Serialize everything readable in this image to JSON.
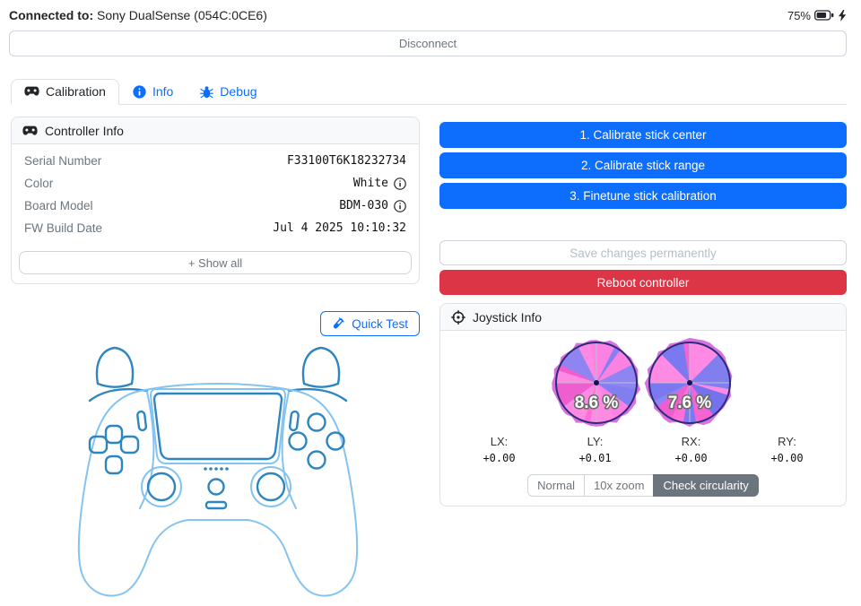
{
  "header": {
    "connected_label": "Connected to:",
    "device_name": "Sony DualSense (054C:0CE6)",
    "battery_percent": "75%",
    "battery_charging": true,
    "disconnect_label": "Disconnect"
  },
  "tabs": [
    {
      "label": "Calibration",
      "icon": "gamepad-icon",
      "active": true
    },
    {
      "label": "Info",
      "icon": "info-icon",
      "active": false
    },
    {
      "label": "Debug",
      "icon": "bug-icon",
      "active": false
    }
  ],
  "controller_info": {
    "title": "Controller Info",
    "rows": [
      {
        "label": "Serial Number",
        "value": "F33100T6K18232734"
      },
      {
        "label": "Color",
        "value": "White"
      },
      {
        "label": "Board Model",
        "value": "BDM-030"
      },
      {
        "label": "FW Build Date",
        "value": "Jul 4 2025 10:10:32"
      }
    ],
    "show_all_plus": "+",
    "show_all_label": "Show all"
  },
  "calibration_actions": [
    "1. Calibrate stick center",
    "2. Calibrate stick range",
    "3. Finetune stick calibration"
  ],
  "save_button_label": "Save changes permanently",
  "reboot_button_label": "Reboot controller",
  "quick_test_label": "Quick Test",
  "joystick_info": {
    "title": "Joystick Info",
    "left_circularity": "8.6 %",
    "right_circularity": "7.6 %",
    "axes": [
      {
        "label": "LX:",
        "value": "+0.00"
      },
      {
        "label": "LY:",
        "value": "+0.01"
      },
      {
        "label": "RX:",
        "value": "+0.00"
      },
      {
        "label": "RY:",
        "value": "+0.00"
      }
    ],
    "modes": [
      {
        "label": "Normal",
        "active": false
      },
      {
        "label": "10x zoom",
        "active": false
      },
      {
        "label": "Check circularity",
        "active": true
      }
    ]
  },
  "colors": {
    "primary": "#0d6efd",
    "danger": "#dc3545",
    "secondary_active": "#6c757d",
    "gauge_outline": "#2b2b78",
    "gauge_pink": "#ff6fd8",
    "gauge_purple": "#7b79ef",
    "controller_light_blue": "#85c3f0",
    "controller_dark_blue": "#2e86c1"
  }
}
